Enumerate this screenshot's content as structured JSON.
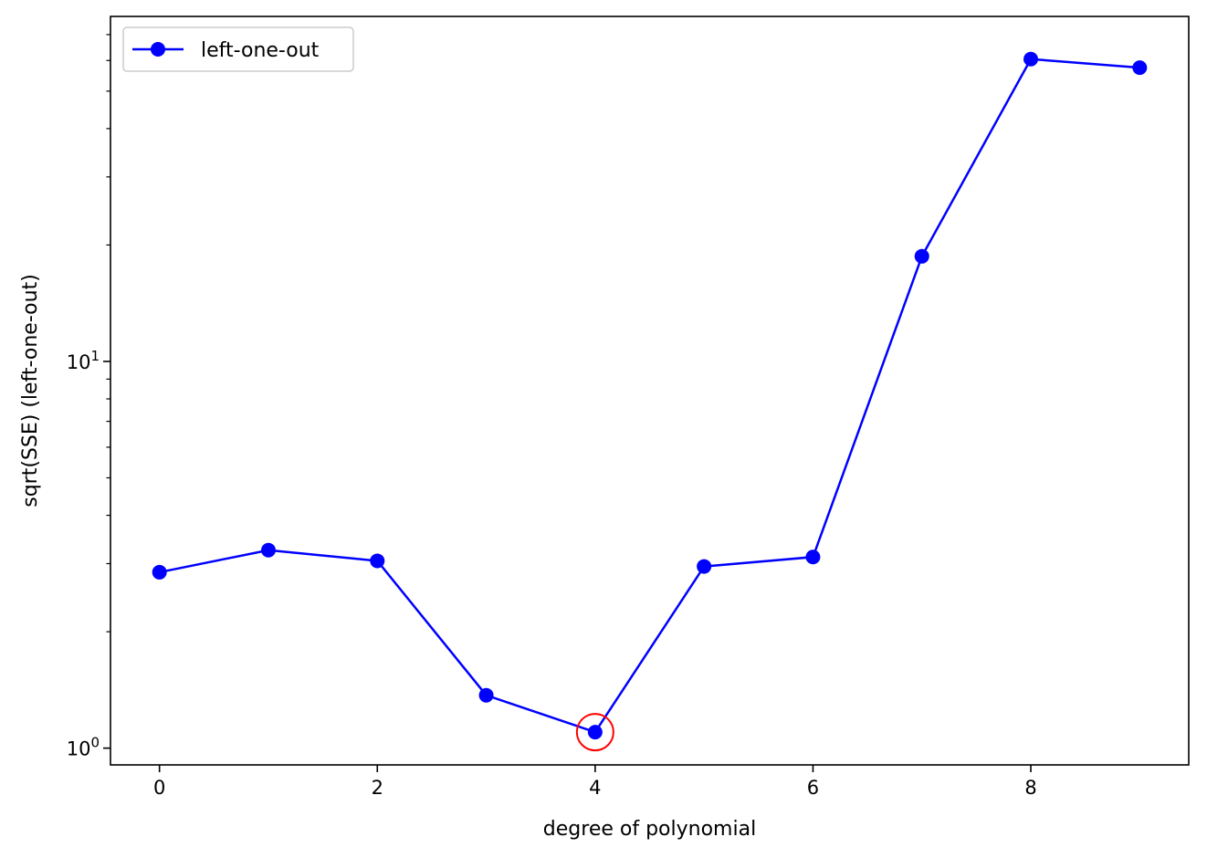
{
  "chart_data": {
    "type": "line",
    "xlabel": "degree of polynomial",
    "ylabel": "sqrt(SSE) (left-one-out)",
    "yscale": "log",
    "xlim": [
      -0.45,
      9.45
    ],
    "ylim": [
      0.905,
      78
    ],
    "x_ticks": [
      0,
      2,
      4,
      6,
      8
    ],
    "x_tick_labels": [
      "0",
      "2",
      "4",
      "6",
      "8"
    ],
    "y_major_ticks": [
      1,
      10
    ],
    "y_tick_labels": [
      {
        "base": "10",
        "exp": "0"
      },
      {
        "base": "10",
        "exp": "1"
      }
    ],
    "legend": {
      "position": "top-left",
      "entries": [
        "left-one-out"
      ]
    },
    "grid": false,
    "series": [
      {
        "name": "left-one-out",
        "color": "#0000ff",
        "marker": "circle",
        "x": [
          0,
          1,
          2,
          3,
          4,
          5,
          6,
          7,
          8,
          9
        ],
        "y": [
          2.85,
          3.25,
          3.05,
          1.37,
          1.1,
          2.95,
          3.12,
          18.7,
          60.5,
          57.5
        ]
      }
    ],
    "highlight": {
      "x": 4,
      "y": 1.1,
      "color": "#ff0000",
      "shape": "circle"
    }
  }
}
